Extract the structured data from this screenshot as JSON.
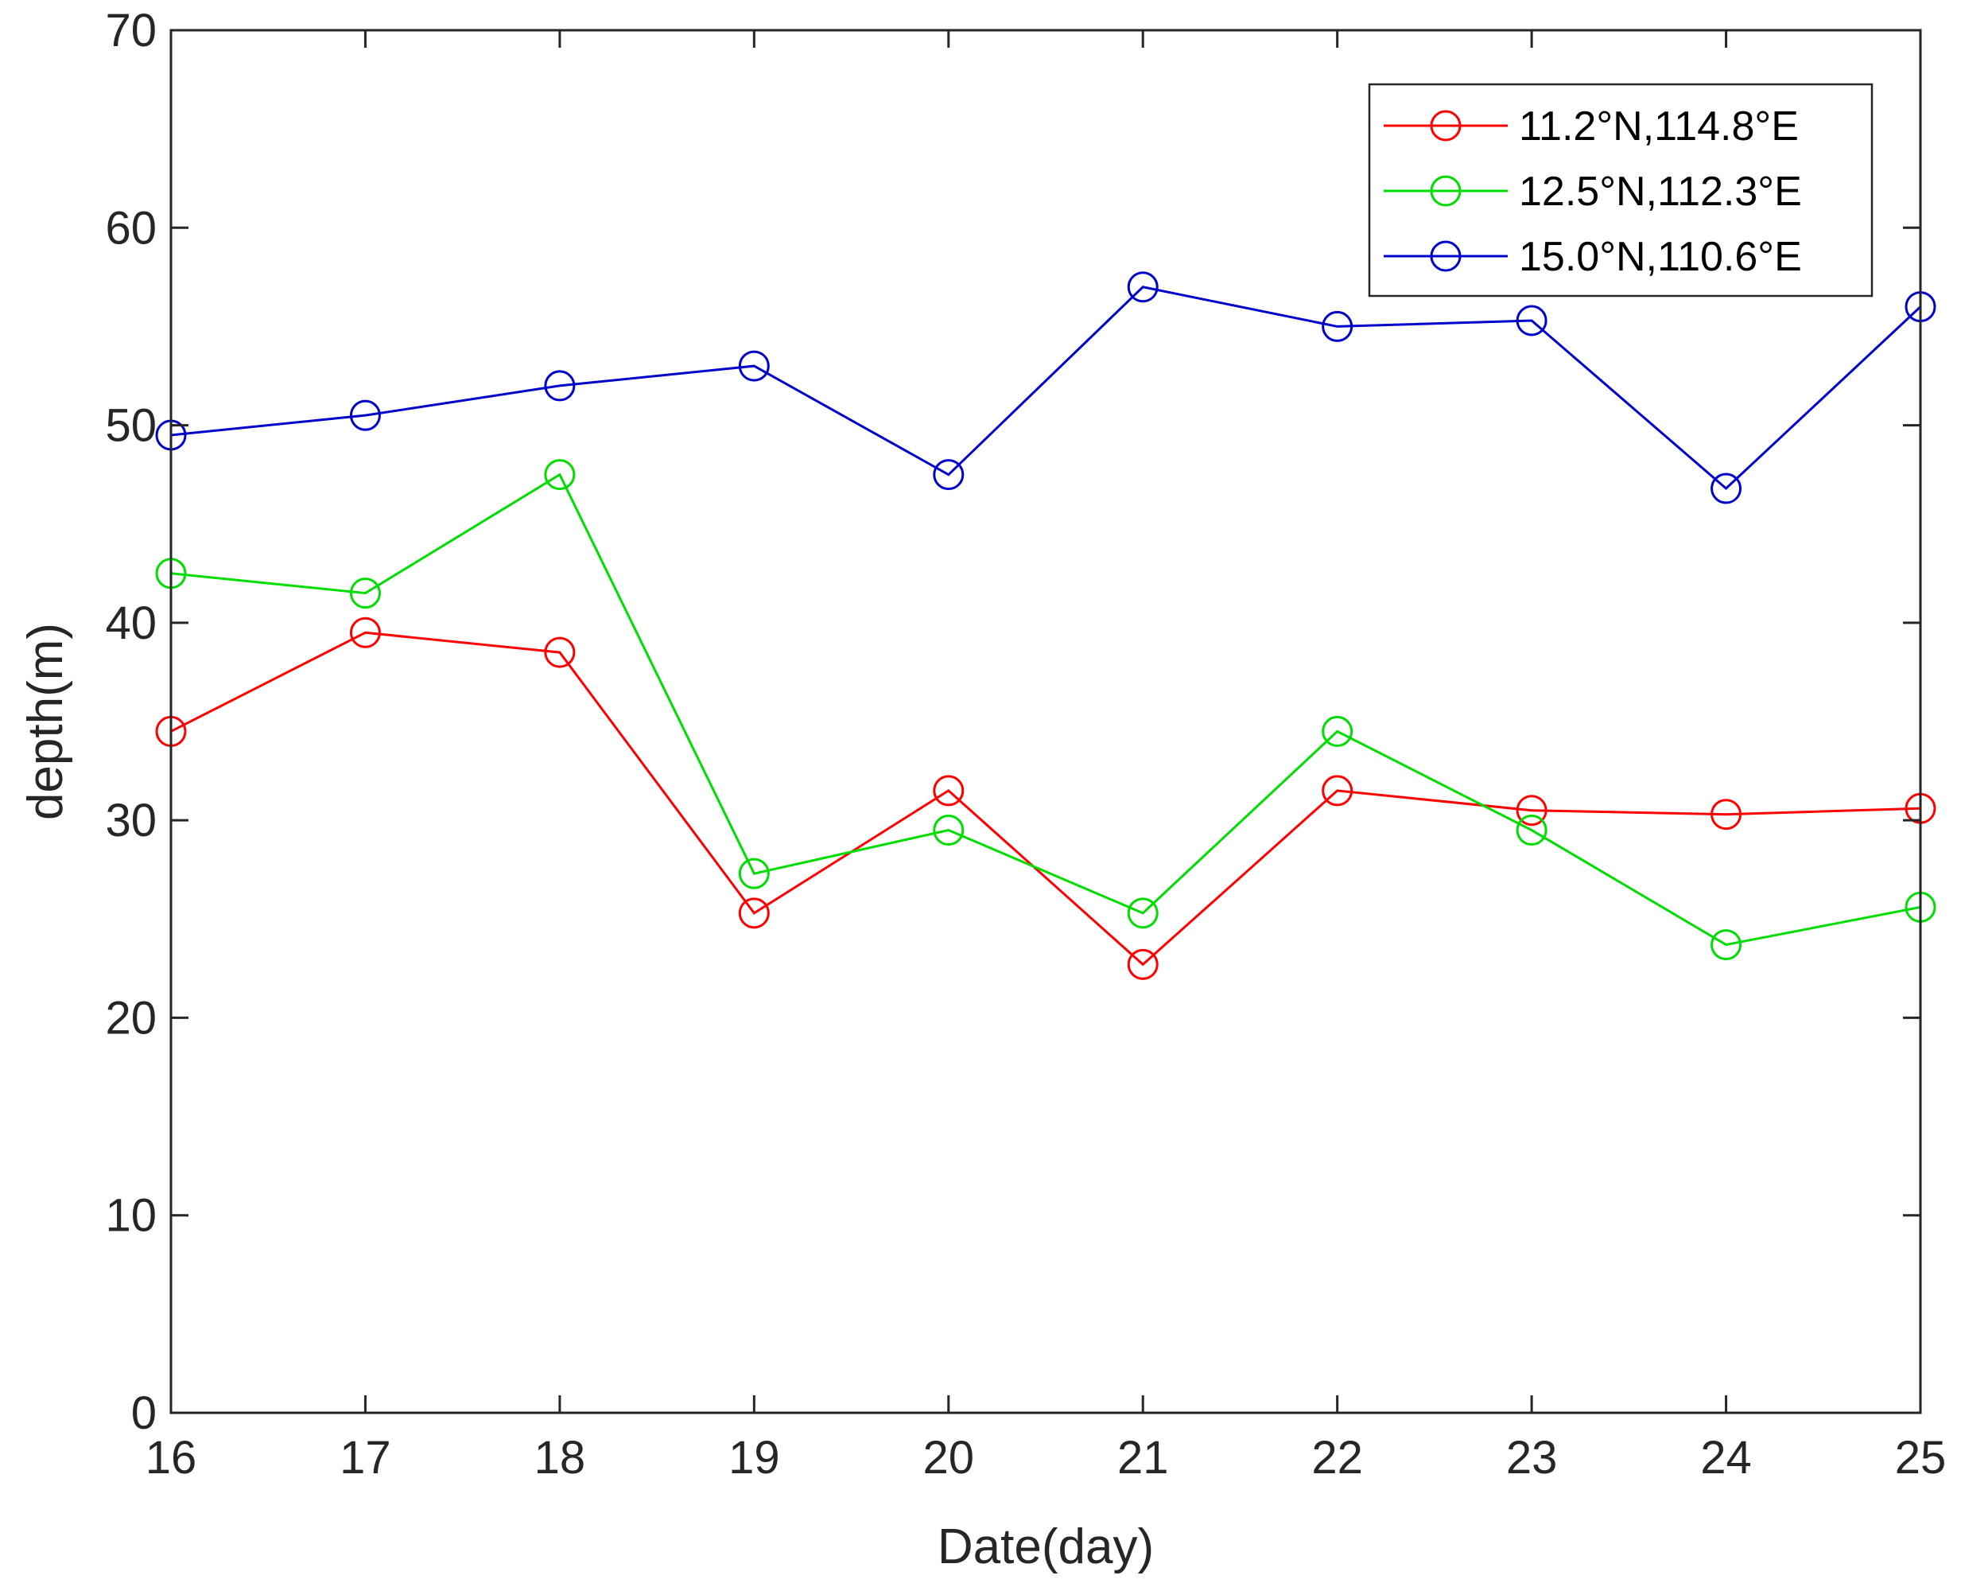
{
  "chart_data": {
    "type": "line",
    "title": "",
    "xlabel": "Date(day)",
    "ylabel": "depth(m)",
    "x": [
      16,
      17,
      18,
      19,
      20,
      21,
      22,
      23,
      24,
      25
    ],
    "xlim": [
      16,
      25
    ],
    "ylim": [
      0,
      70
    ],
    "xticks": [
      16,
      17,
      18,
      19,
      20,
      21,
      22,
      23,
      24,
      25
    ],
    "yticks": [
      0,
      10,
      20,
      30,
      40,
      50,
      60,
      70
    ],
    "grid": false,
    "legend_position": "top-right",
    "series": [
      {
        "name": "11.2°N,114.8°E",
        "color": "#ff0000",
        "marker": "circle",
        "values": [
          34.5,
          39.5,
          38.5,
          25.3,
          31.5,
          22.7,
          31.5,
          30.5,
          30.3,
          30.6
        ]
      },
      {
        "name": "12.5°N,112.3°E",
        "color": "#00dd00",
        "marker": "circle",
        "values": [
          42.5,
          41.5,
          47.5,
          27.3,
          29.5,
          25.3,
          34.5,
          29.5,
          23.7,
          25.6
        ]
      },
      {
        "name": "15.0°N,110.6°E",
        "color": "#0000cc",
        "marker": "circle",
        "values": [
          49.5,
          50.5,
          52.0,
          53.0,
          47.5,
          57.0,
          55.0,
          55.3,
          46.8,
          56.0
        ]
      }
    ]
  }
}
